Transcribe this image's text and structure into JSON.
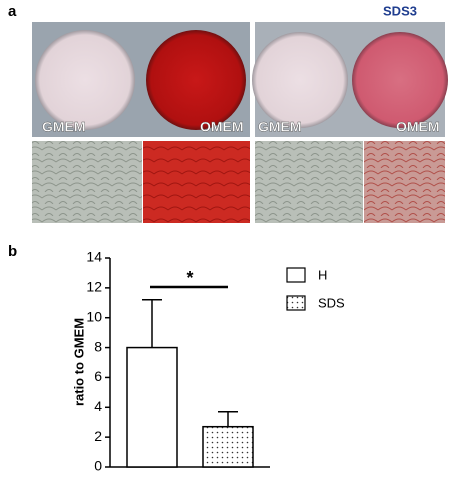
{
  "panel_labels": [
    "a",
    "b"
  ],
  "photo": {
    "title": "SDS3",
    "labels": [
      "GMEM",
      "OMEM",
      "GMEM",
      "OMEM"
    ]
  },
  "chart_data": {
    "type": "bar",
    "ylabel": "ratio to GMEM",
    "annotation": "*",
    "categories": [
      null
    ],
    "series": [
      {
        "name": "H",
        "color": "#ffffff",
        "values": [
          8.0
        ],
        "errors": [
          3.2
        ]
      },
      {
        "name": "SDS",
        "color": "#ffffff",
        "pattern": "dots",
        "values": [
          2.7
        ],
        "errors": [
          1.0
        ]
      }
    ],
    "ylim": [
      0,
      14
    ],
    "yticks": [
      0,
      2,
      4,
      6,
      8,
      10,
      12,
      14
    ]
  }
}
